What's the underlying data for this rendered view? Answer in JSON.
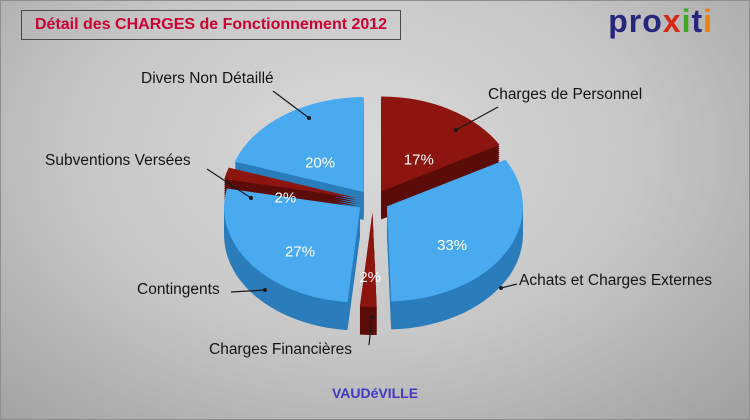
{
  "title": "Détail des CHARGES de Fonctionnement 2012",
  "logo": {
    "name": "proxiti",
    "letters": [
      {
        "ch": "p",
        "color": "#26267e"
      },
      {
        "ch": "r",
        "color": "#26267e"
      },
      {
        "ch": "o",
        "color": "#26267e"
      },
      {
        "ch": "x",
        "color": "#d62b12"
      },
      {
        "ch": "i",
        "color": "#43a524"
      },
      {
        "ch": "t",
        "color": "#26267e"
      },
      {
        "ch": "i",
        "color": "#e8820c"
      }
    ]
  },
  "colors": {
    "title": "#cc0033",
    "footer": "#4338c2",
    "label": "#141414",
    "pct": "#ffffff",
    "leader_line": "#1a1a1a",
    "blue_slice": "#49aaf0",
    "blue_side": "#2b7cba",
    "red_slice": "#8c1510",
    "red_side": "#5c0c08"
  },
  "chart_data": {
    "type": "pie",
    "title": "Détail des CHARGES de Fonctionnement 2012",
    "unit": "%",
    "start_angle_deg": -90,
    "direction": "clockwise",
    "legend": "none",
    "footer": "VAUDéVILLE",
    "slices": [
      {
        "label": "Charges de Personnel",
        "value": 17,
        "pct_label": "17%",
        "color": "#8c1510",
        "side_color": "#5c0c08"
      },
      {
        "label": "Achats et Charges Externes",
        "value": 33,
        "pct_label": "33%",
        "color": "#49aaf0",
        "side_color": "#2b7cba"
      },
      {
        "label": "Charges Financières",
        "value": 2,
        "pct_label": "2%",
        "color": "#8c1510",
        "side_color": "#5c0c08"
      },
      {
        "label": "Contingents",
        "value": 27,
        "pct_label": "27%",
        "color": "#49aaf0",
        "side_color": "#2b7cba"
      },
      {
        "label": "Subventions Versées",
        "value": 2,
        "pct_label": "2%",
        "color": "#8c1510",
        "side_color": "#5c0c08"
      },
      {
        "label": "Divers Non Détaillé",
        "value": 20,
        "pct_label": "20%",
        "color": "#49aaf0",
        "side_color": "#2b7cba"
      }
    ]
  }
}
